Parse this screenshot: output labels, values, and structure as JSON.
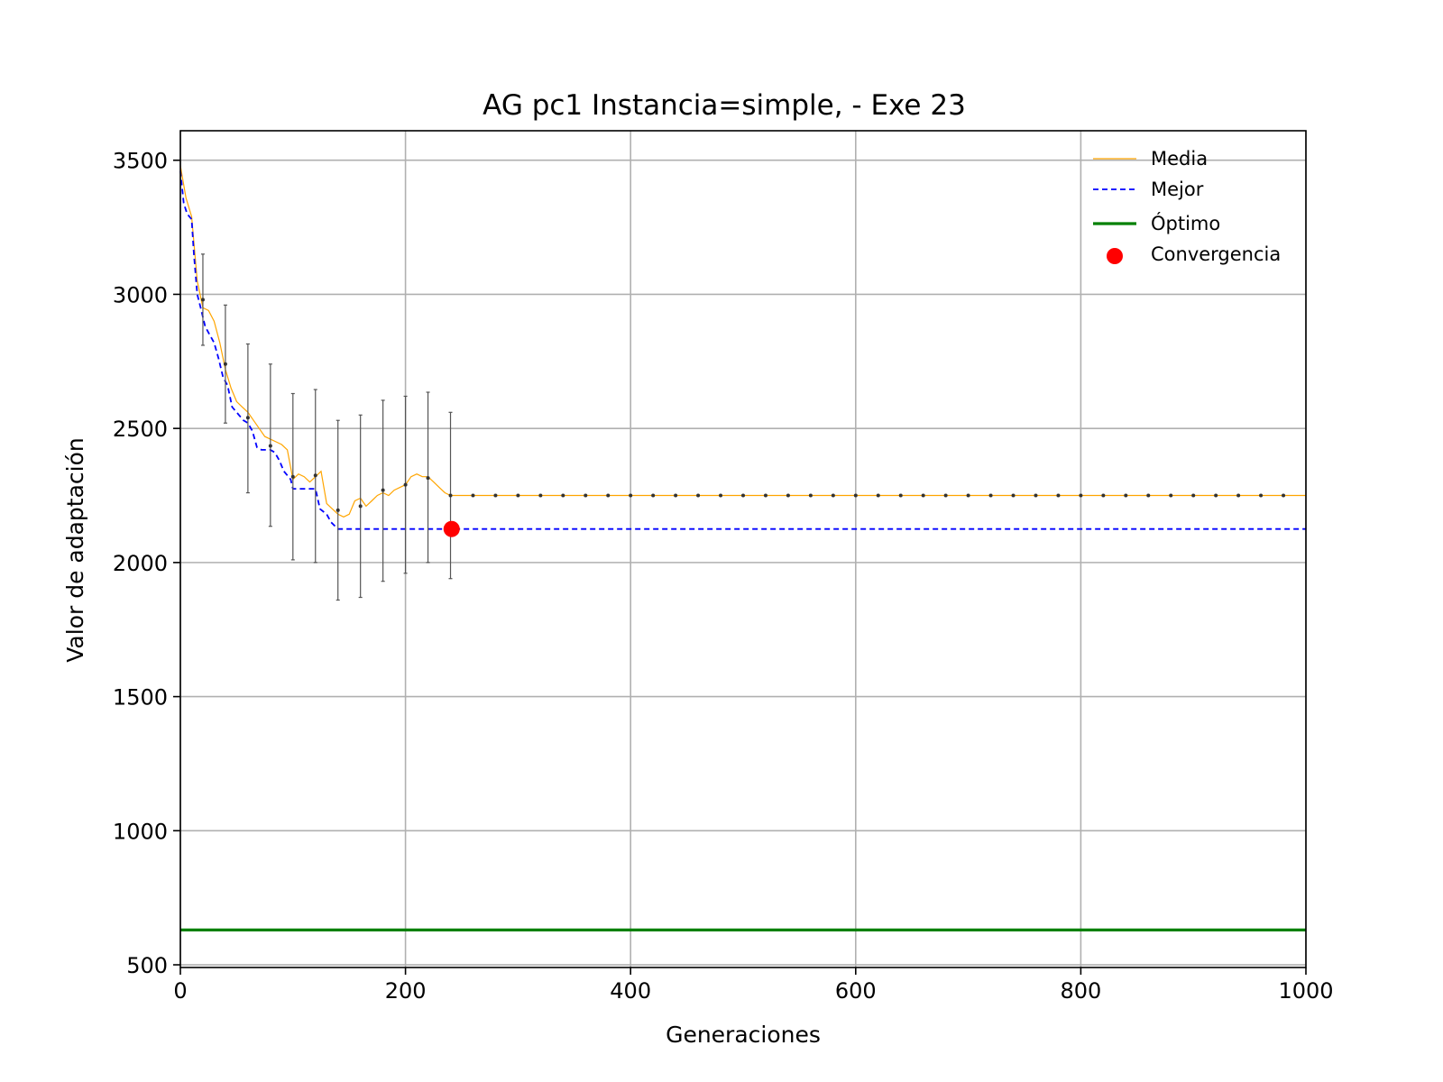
{
  "chart_data": {
    "type": "line",
    "title": "AG pc1 Instancia=simple, - Exe 23",
    "xlabel": "Generaciones",
    "ylabel": "Valor de adaptación",
    "xlim": [
      0,
      1000
    ],
    "ylim": [
      490,
      3610
    ],
    "xticks": [
      0,
      200,
      400,
      600,
      800,
      1000
    ],
    "yticks": [
      500,
      1000,
      1500,
      2000,
      2500,
      3000,
      3500
    ],
    "grid": true,
    "legend_position": "top-right",
    "legend": [
      {
        "label": "Media",
        "style": "line",
        "color": "#ffa500"
      },
      {
        "label": "Mejor",
        "style": "dashed",
        "color": "#0000ff"
      },
      {
        "label": "Óptimo",
        "style": "thick",
        "color": "#008000"
      },
      {
        "label": "Convergencia",
        "style": "marker",
        "color": "#ff0000"
      }
    ],
    "series": [
      {
        "name": "Media",
        "color": "#ffa500",
        "x": [
          0,
          5,
          10,
          15,
          20,
          25,
          30,
          35,
          40,
          45,
          50,
          55,
          60,
          65,
          70,
          75,
          80,
          85,
          90,
          95,
          100,
          105,
          110,
          115,
          120,
          125,
          130,
          135,
          140,
          145,
          150,
          155,
          160,
          165,
          170,
          175,
          180,
          185,
          190,
          195,
          200,
          205,
          210,
          215,
          220,
          225,
          230,
          235,
          240,
          1000
        ],
        "y": [
          3480,
          3360,
          3290,
          3050,
          2950,
          2940,
          2900,
          2820,
          2720,
          2650,
          2600,
          2580,
          2560,
          2530,
          2500,
          2470,
          2460,
          2450,
          2440,
          2420,
          2310,
          2330,
          2320,
          2300,
          2320,
          2340,
          2220,
          2200,
          2180,
          2170,
          2180,
          2230,
          2240,
          2210,
          2230,
          2250,
          2260,
          2250,
          2270,
          2280,
          2290,
          2320,
          2330,
          2320,
          2320,
          2300,
          2280,
          2260,
          2250,
          2250
        ]
      },
      {
        "name": "Mejor",
        "color": "#0000ff",
        "x": [
          0,
          3,
          6,
          10,
          12,
          15,
          18,
          22,
          26,
          30,
          34,
          38,
          42,
          46,
          50,
          56,
          60,
          64,
          68,
          72,
          76,
          80,
          84,
          88,
          92,
          96,
          98,
          100,
          108,
          120,
          124,
          130,
          134,
          140,
          241,
          1000
        ],
        "y": [
          3460,
          3340,
          3300,
          3280,
          3150,
          3000,
          2950,
          2880,
          2850,
          2820,
          2760,
          2690,
          2660,
          2580,
          2560,
          2530,
          2520,
          2490,
          2430,
          2420,
          2420,
          2420,
          2410,
          2380,
          2340,
          2320,
          2310,
          2275,
          2275,
          2275,
          2200,
          2180,
          2150,
          2125,
          2125,
          2125
        ]
      },
      {
        "name": "Óptimo",
        "color": "#008000",
        "x": [
          0,
          1000
        ],
        "y": [
          630,
          630
        ]
      }
    ],
    "error_bars": {
      "x": [
        20,
        40,
        60,
        80,
        100,
        120,
        140,
        160,
        180,
        200,
        220,
        240
      ],
      "y": [
        2980,
        2740,
        2540,
        2435,
        2320,
        2325,
        2195,
        2210,
        2270,
        2290,
        2315,
        2250
      ],
      "low": [
        2810,
        2520,
        2260,
        2135,
        2010,
        2000,
        1860,
        1870,
        1930,
        1960,
        2000,
        1940
      ],
      "high": [
        3150,
        2960,
        2815,
        2740,
        2630,
        2645,
        2530,
        2550,
        2605,
        2620,
        2635,
        2560
      ]
    },
    "points_x": [
      20,
      40,
      60,
      80,
      100,
      120,
      140,
      160,
      180,
      200,
      220,
      240,
      260,
      280,
      300,
      320,
      340,
      360,
      380,
      400,
      420,
      440,
      460,
      480,
      500,
      520,
      540,
      560,
      580,
      600,
      620,
      640,
      660,
      680,
      700,
      720,
      740,
      760,
      780,
      800,
      820,
      840,
      860,
      880,
      900,
      920,
      940,
      960,
      980
    ],
    "convergence": {
      "x": 241,
      "y": 2125
    }
  }
}
